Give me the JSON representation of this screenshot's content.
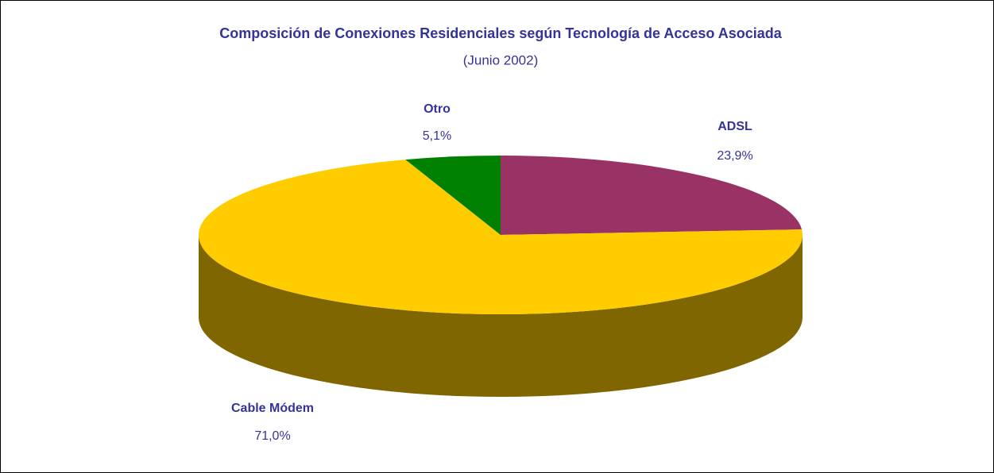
{
  "chart_data": {
    "type": "pie",
    "title": "Composición de Conexiones Residenciales según Tecnología de Acceso Asociada",
    "subtitle": "(Junio 2002)",
    "categories": [
      "ADSL",
      "Cable Módem",
      "Otro"
    ],
    "values": [
      23.9,
      71.0,
      5.1
    ],
    "value_labels": [
      "23,9%",
      "71,0%",
      "5,1%"
    ],
    "colors": [
      "#993366",
      "#ffcc00",
      "#008000"
    ]
  }
}
